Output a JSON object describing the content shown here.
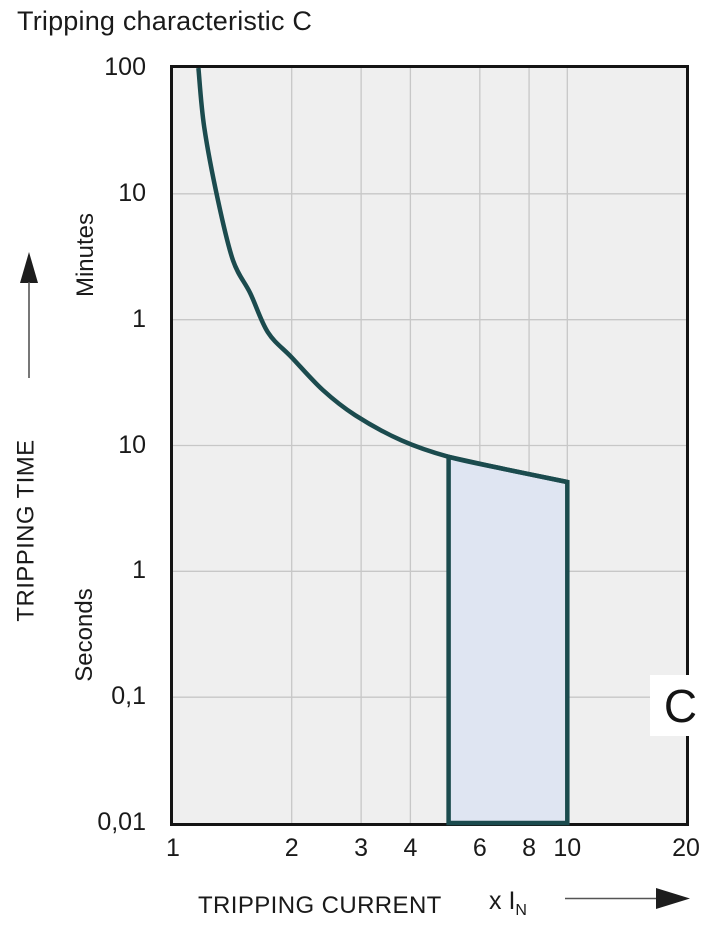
{
  "title": "Tripping characteristic C",
  "y_axis": {
    "label": "TRIPPING TIME",
    "unit_top": "Minutes",
    "unit_bottom": "Seconds",
    "ticks": [
      "100",
      "10",
      "1",
      "10",
      "1",
      "0,1",
      "0,01"
    ]
  },
  "x_axis": {
    "label": "TRIPPING CURRENT",
    "multiplier_text": "x I",
    "multiplier_sub": "N",
    "ticks": [
      "1",
      "2",
      "3",
      "4",
      "6",
      "8",
      "10",
      "20"
    ],
    "tick_values": [
      1,
      2,
      3,
      4,
      6,
      8,
      10,
      20
    ]
  },
  "region_label": "C",
  "colors": {
    "curve": "#1b4b4e",
    "band_fill": "#dfe5f2",
    "plot_background": "#efefef",
    "gridline": "#c7c7c7",
    "border": "#141414",
    "text": "#1a1a1a"
  },
  "chart_data": {
    "type": "line",
    "title": "Tripping characteristic C",
    "xlabel": "TRIPPING CURRENT (x IN)",
    "ylabel": "TRIPPING TIME",
    "x_scale": "log",
    "x_range": [
      1,
      20
    ],
    "x_ticks": [
      1,
      2,
      3,
      4,
      6,
      8,
      10,
      20
    ],
    "x_gridlines": [
      2,
      3,
      4,
      6,
      8,
      10
    ],
    "y_scale": "split log axis, 6 decades top to bottom: Minutes 100/10/1 then Seconds 10/1/0,1/0,01",
    "y_decades": [
      "100 min",
      "10 min",
      "1 min",
      "10 s",
      "1 s",
      "0,1 s",
      "0,01 s"
    ],
    "grid": true,
    "legend": "none",
    "series": [
      {
        "name": "C tripping curve",
        "points_current_vs_decades_below_top": [
          [
            1.16,
            0
          ],
          [
            1.2,
            0.47
          ],
          [
            1.3,
            1.05
          ],
          [
            1.42,
            1.53
          ],
          [
            1.57,
            1.79
          ],
          [
            1.74,
            2.1
          ],
          [
            2.0,
            2.3
          ],
          [
            2.4,
            2.56
          ],
          [
            2.9,
            2.76
          ],
          [
            3.8,
            2.96
          ],
          [
            5.0,
            3.09
          ],
          [
            7.0,
            3.19
          ],
          [
            10.0,
            3.29
          ]
        ],
        "approx_trip_times": "100 min @1.16xIn, ~9 min @1.3xIn, ~30 s @2xIn, ~8 s @5xIn, ~5 s @10xIn"
      }
    ],
    "shaded_band": {
      "label": "C",
      "from_multiple_of_In": 5,
      "to_multiple_of_In": 10,
      "bottom": "0,01 s (bottom axis)",
      "top_follows_curve": true
    }
  }
}
